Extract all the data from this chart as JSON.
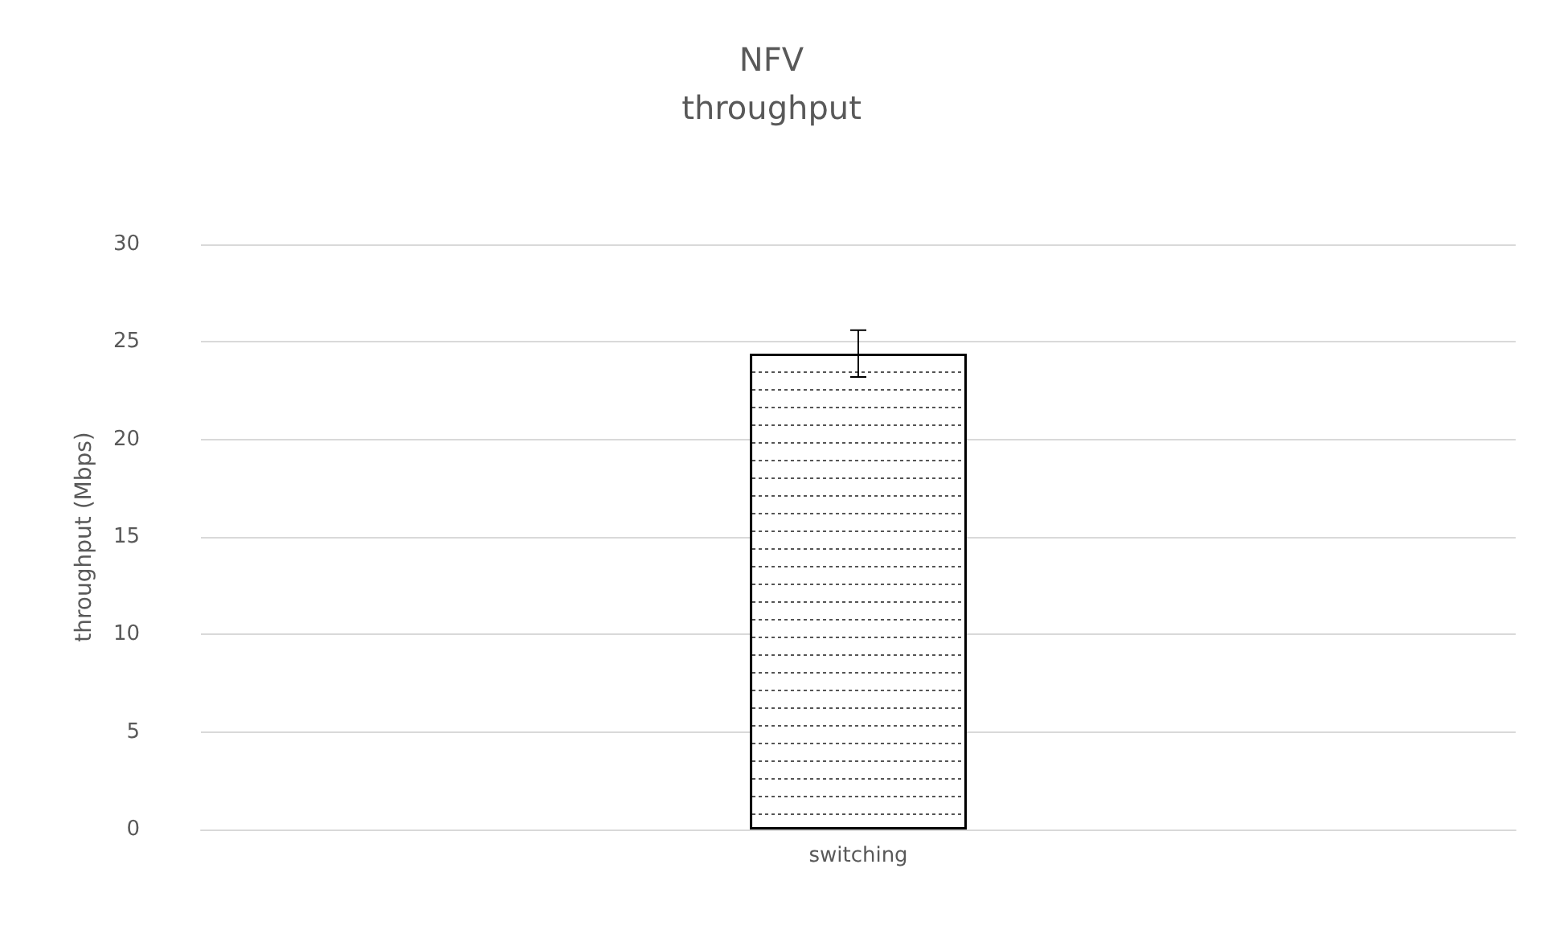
{
  "chart_data": {
    "type": "bar",
    "title": "NFV",
    "subtitle": "throughput",
    "ylabel": "throughput (Mbps)",
    "categories": [
      "switching"
    ],
    "values": [
      24.4
    ],
    "errors": [
      1.2
    ],
    "color": "#ffffff",
    "ylim": [
      0,
      30
    ],
    "yticks": [
      0,
      5,
      10,
      15,
      20,
      25,
      30
    ],
    "grid": "y"
  }
}
